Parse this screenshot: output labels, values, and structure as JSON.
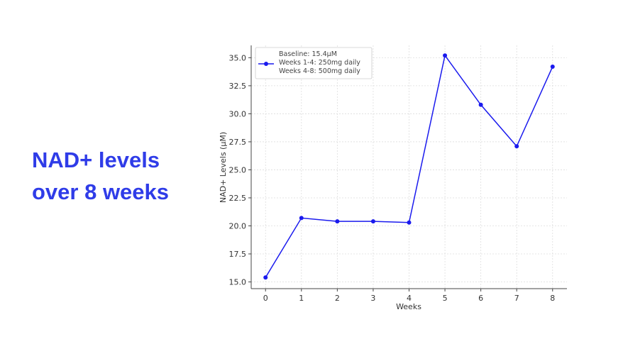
{
  "slide": {
    "heading_line1": "NAD+ levels",
    "heading_line2": "over 8 weeks"
  },
  "chart_data": {
    "type": "line",
    "title": "",
    "xlabel": "Weeks",
    "ylabel": "NAD+ Levels (µM)",
    "x": [
      0,
      1,
      2,
      3,
      4,
      5,
      6,
      7,
      8
    ],
    "series": [
      {
        "name": "Baseline: 15.4µM\nWeeks 1-4: 250mg daily\nWeeks 4-8: 500mg daily",
        "legend_lines": [
          "Baseline: 15.4µM",
          "Weeks 1-4: 250mg daily",
          "Weeks 4-8: 500mg daily"
        ],
        "values": [
          15.4,
          20.7,
          20.4,
          20.4,
          20.3,
          35.2,
          30.8,
          27.1,
          34.2
        ],
        "color": "#1a1aee",
        "marker": "circle"
      }
    ],
    "xticks": [
      "0",
      "1",
      "2",
      "3",
      "4",
      "5",
      "6",
      "7",
      "8"
    ],
    "yticks": [
      "15.0",
      "17.5",
      "20.0",
      "22.5",
      "25.0",
      "27.5",
      "30.0",
      "32.5",
      "35.0"
    ],
    "xlim": [
      -0.4,
      8.4
    ],
    "ylim": [
      14.4,
      36.1
    ],
    "grid": true,
    "legend_position": "top-left"
  }
}
